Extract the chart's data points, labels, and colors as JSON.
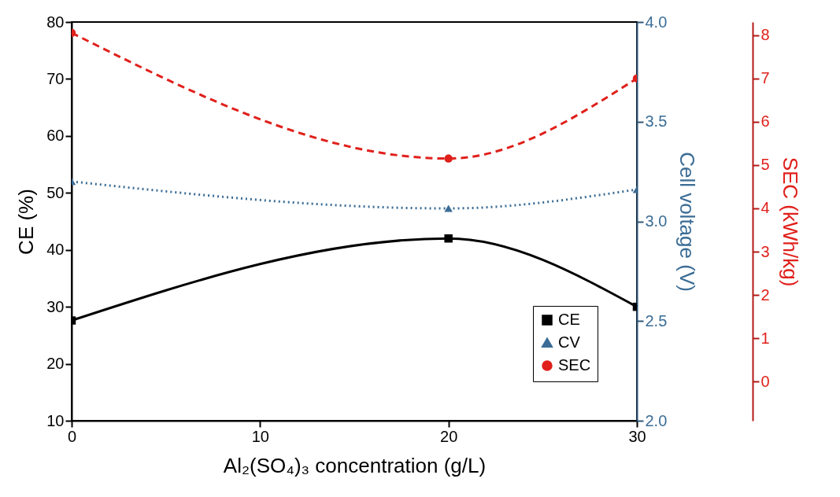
{
  "chart_data": {
    "type": "line",
    "xlabel": "Al₂(SO₄)₃ concentration (g/L)",
    "ylabel": "CE (%)",
    "y2label": "Cell voltage (V)",
    "y3label": "SEC (kWh/kg)",
    "x": [
      0,
      20,
      30
    ],
    "xlim": [
      0,
      30
    ],
    "xticks": [
      0,
      10,
      20,
      30
    ],
    "ylim": [
      10,
      80
    ],
    "yticks": [
      10,
      20,
      30,
      40,
      50,
      60,
      70,
      80
    ],
    "y2lim": [
      2,
      4
    ],
    "y2ticks": [
      {
        "value": 2,
        "label": "2.0"
      },
      {
        "value": 2.5,
        "label": "2.5"
      },
      {
        "value": 3,
        "label": "3.0"
      },
      {
        "value": 3.5,
        "label": "3.5"
      },
      {
        "value": 4,
        "label": "4.0"
      }
    ],
    "y3lim": [
      -0.9,
      8.3
    ],
    "y3ticks": [
      0,
      1,
      2,
      3,
      4,
      5,
      6,
      7,
      8
    ],
    "grid": false,
    "legend": "bottom right",
    "series": [
      {
        "name": "CE",
        "color": "#000000",
        "values": [
          27.6,
          42,
          30
        ],
        "marker": "square",
        "line_style": "solid"
      },
      {
        "name": "CV",
        "color": "#3b6d96",
        "values": [
          3.2,
          3.065,
          3.16
        ],
        "axis": "y2",
        "marker": "triangle",
        "line_style": "dotted"
      },
      {
        "name": "SEC",
        "color": "#e0201b",
        "values": [
          8.05,
          5.15,
          7.0
        ],
        "axis": "y3",
        "marker": "circle",
        "line_style": "dashed"
      }
    ]
  }
}
